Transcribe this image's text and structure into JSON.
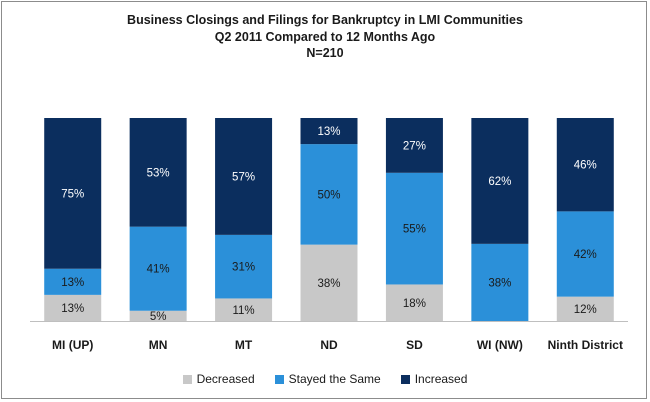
{
  "chart_data": {
    "type": "bar",
    "stacked": true,
    "percent": true,
    "title_lines": [
      "Business Closings and Filings for Bankruptcy  in LMI Communities",
      "Q2 2011 Compared to 12 Months Ago",
      "N=210"
    ],
    "categories": [
      "MI (UP)",
      "MN",
      "MT",
      "ND",
      "SD",
      "WI (NW)",
      "Ninth District"
    ],
    "series": [
      {
        "name": "Decreased",
        "color": "#c8c8c8",
        "label_color": "#1a1a1a",
        "values": [
          13,
          5,
          11,
          38,
          18,
          0,
          12
        ]
      },
      {
        "name": "Stayed the Same",
        "color": "#2b90d9",
        "label_color": "#1a1a1a",
        "values": [
          13,
          41,
          31,
          50,
          55,
          38,
          42
        ]
      },
      {
        "name": "Increased",
        "color": "#0b2e5e",
        "label_color": "#ffffff",
        "values": [
          75,
          53,
          57,
          13,
          27,
          62,
          46
        ]
      }
    ],
    "ylim": [
      0,
      100
    ],
    "grid": false,
    "legend_position": "bottom"
  }
}
